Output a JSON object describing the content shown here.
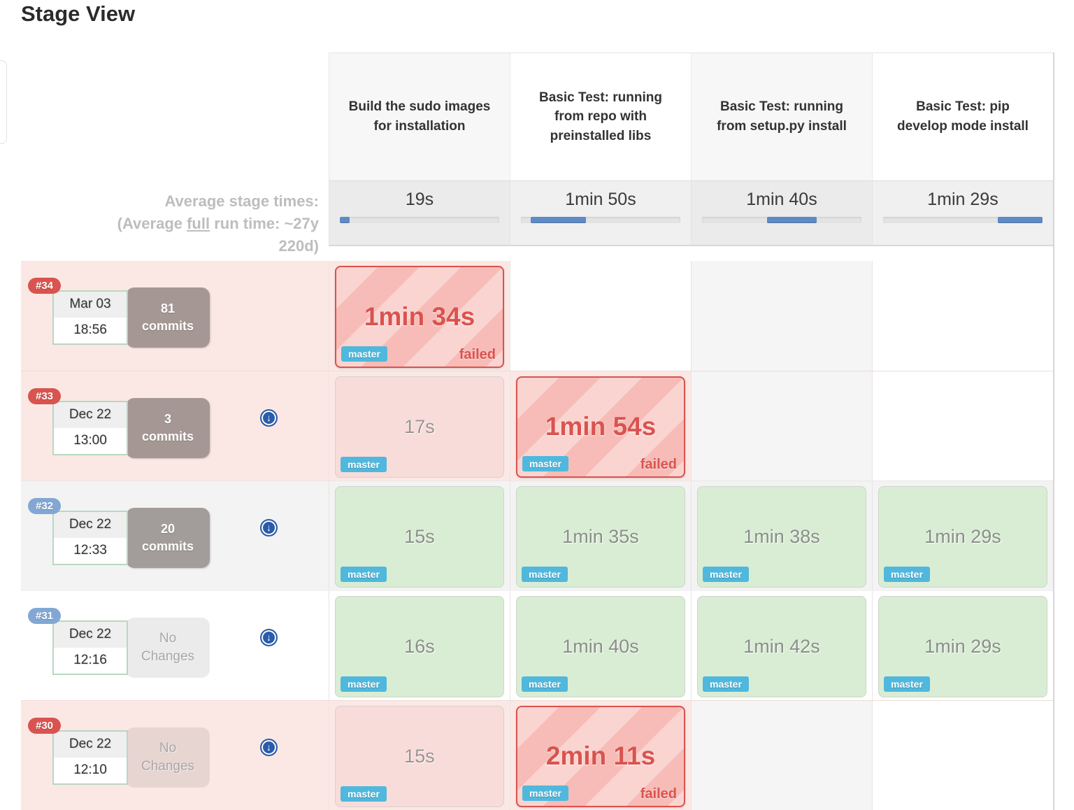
{
  "page": {
    "title": "Stage View"
  },
  "icons": {
    "download_glyph": "↓"
  },
  "colors": {
    "failed_accent": "#d9534f",
    "branch_badge": "#50b8dd",
    "bar_fill": "#5e8ac6",
    "badge_failed": "#d9534f",
    "badge_success": "#82a7d4"
  },
  "table": {
    "columns": [
      {
        "label": "Build the sudo images for installation",
        "tint": true
      },
      {
        "label": "Basic Test: running from repo with preinstalled libs",
        "tint": false
      },
      {
        "label": "Basic Test: running from setup.py install",
        "tint": true
      },
      {
        "label": "Basic Test: pip develop mode install",
        "tint": false
      }
    ],
    "averages": {
      "heading": "Average stage times:",
      "subheading_prefix": "(Average ",
      "subheading_link": "full",
      "subheading_suffix": " run time: ~27y",
      "subheading_line2": "220d)",
      "stages": [
        {
          "time": "19s",
          "bar_start_pct": 0,
          "bar_width_pct": 6
        },
        {
          "time": "1min 50s",
          "bar_start_pct": 6,
          "bar_width_pct": 34.6
        },
        {
          "time": "1min 40s",
          "bar_start_pct": 40.6,
          "bar_width_pct": 31.4
        },
        {
          "time": "1min 29s",
          "bar_start_pct": 72,
          "bar_width_pct": 28
        }
      ]
    },
    "builds": [
      {
        "id": "#34",
        "status": "failed",
        "band": "pink",
        "date": "Mar 03",
        "time": "18:56",
        "changes_line1": "81",
        "changes_line2": "commits",
        "changes_kind": "commits",
        "has_download": false,
        "cells": [
          {
            "type": "failed",
            "duration": "1min 34s",
            "branch": "master",
            "status_label": "failed"
          },
          {
            "type": "empty"
          },
          {
            "type": "empty"
          },
          {
            "type": "empty"
          }
        ]
      },
      {
        "id": "#33",
        "status": "failed",
        "band": "pink",
        "date": "Dec 22",
        "time": "13:00",
        "changes_line1": "3",
        "changes_line2": "commits",
        "changes_kind": "commits",
        "has_download": true,
        "cells": [
          {
            "type": "pale",
            "duration": "17s",
            "branch": "master"
          },
          {
            "type": "failed",
            "duration": "1min 54s",
            "branch": "master",
            "status_label": "failed"
          },
          {
            "type": "empty"
          },
          {
            "type": "empty"
          }
        ]
      },
      {
        "id": "#32",
        "status": "success",
        "band": "gray",
        "date": "Dec 22",
        "time": "12:33",
        "changes_line1": "20",
        "changes_line2": "commits",
        "changes_kind": "commits",
        "has_download": true,
        "cells": [
          {
            "type": "green",
            "duration": "15s",
            "branch": "master"
          },
          {
            "type": "green",
            "duration": "1min 35s",
            "branch": "master"
          },
          {
            "type": "green",
            "duration": "1min 38s",
            "branch": "master"
          },
          {
            "type": "green",
            "duration": "1min 29s",
            "branch": "master"
          }
        ]
      },
      {
        "id": "#31",
        "status": "success",
        "band": "white",
        "date": "Dec 22",
        "time": "12:16",
        "changes_line1": "No",
        "changes_line2": "Changes",
        "changes_kind": "none",
        "has_download": true,
        "cells": [
          {
            "type": "green",
            "duration": "16s",
            "branch": "master"
          },
          {
            "type": "green",
            "duration": "1min 40s",
            "branch": "master"
          },
          {
            "type": "green",
            "duration": "1min 42s",
            "branch": "master"
          },
          {
            "type": "green",
            "duration": "1min 29s",
            "branch": "master"
          }
        ]
      },
      {
        "id": "#30",
        "status": "failed",
        "band": "pink",
        "date": "Dec 22",
        "time": "12:10",
        "changes_line1": "No",
        "changes_line2": "Changes",
        "changes_kind": "none",
        "has_download": true,
        "cells": [
          {
            "type": "pale",
            "duration": "15s",
            "branch": "master"
          },
          {
            "type": "failed",
            "duration": "2min 11s",
            "branch": "master",
            "status_label": "failed"
          },
          {
            "type": "empty"
          },
          {
            "type": "empty"
          }
        ]
      }
    ]
  }
}
